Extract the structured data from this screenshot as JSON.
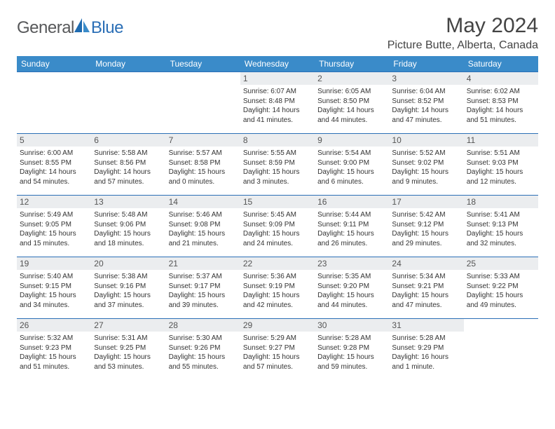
{
  "brand": {
    "general": "General",
    "blue": "Blue"
  },
  "title": "May 2024",
  "location": "Picture Butte, Alberta, Canada",
  "colors": {
    "header_bg": "#3a8bc9",
    "border": "#2b6fb6",
    "daynum_bg": "#ebedef",
    "text": "#333333",
    "logo_gray": "#57585a",
    "logo_blue": "#2b6fb6"
  },
  "weekdays": [
    "Sunday",
    "Monday",
    "Tuesday",
    "Wednesday",
    "Thursday",
    "Friday",
    "Saturday"
  ],
  "weeks": [
    [
      {
        "blank": true
      },
      {
        "blank": true
      },
      {
        "blank": true
      },
      {
        "day": "1",
        "sunrise": "Sunrise: 6:07 AM",
        "sunset": "Sunset: 8:48 PM",
        "daylight": "Daylight: 14 hours and 41 minutes."
      },
      {
        "day": "2",
        "sunrise": "Sunrise: 6:05 AM",
        "sunset": "Sunset: 8:50 PM",
        "daylight": "Daylight: 14 hours and 44 minutes."
      },
      {
        "day": "3",
        "sunrise": "Sunrise: 6:04 AM",
        "sunset": "Sunset: 8:52 PM",
        "daylight": "Daylight: 14 hours and 47 minutes."
      },
      {
        "day": "4",
        "sunrise": "Sunrise: 6:02 AM",
        "sunset": "Sunset: 8:53 PM",
        "daylight": "Daylight: 14 hours and 51 minutes."
      }
    ],
    [
      {
        "day": "5",
        "sunrise": "Sunrise: 6:00 AM",
        "sunset": "Sunset: 8:55 PM",
        "daylight": "Daylight: 14 hours and 54 minutes."
      },
      {
        "day": "6",
        "sunrise": "Sunrise: 5:58 AM",
        "sunset": "Sunset: 8:56 PM",
        "daylight": "Daylight: 14 hours and 57 minutes."
      },
      {
        "day": "7",
        "sunrise": "Sunrise: 5:57 AM",
        "sunset": "Sunset: 8:58 PM",
        "daylight": "Daylight: 15 hours and 0 minutes."
      },
      {
        "day": "8",
        "sunrise": "Sunrise: 5:55 AM",
        "sunset": "Sunset: 8:59 PM",
        "daylight": "Daylight: 15 hours and 3 minutes."
      },
      {
        "day": "9",
        "sunrise": "Sunrise: 5:54 AM",
        "sunset": "Sunset: 9:00 PM",
        "daylight": "Daylight: 15 hours and 6 minutes."
      },
      {
        "day": "10",
        "sunrise": "Sunrise: 5:52 AM",
        "sunset": "Sunset: 9:02 PM",
        "daylight": "Daylight: 15 hours and 9 minutes."
      },
      {
        "day": "11",
        "sunrise": "Sunrise: 5:51 AM",
        "sunset": "Sunset: 9:03 PM",
        "daylight": "Daylight: 15 hours and 12 minutes."
      }
    ],
    [
      {
        "day": "12",
        "sunrise": "Sunrise: 5:49 AM",
        "sunset": "Sunset: 9:05 PM",
        "daylight": "Daylight: 15 hours and 15 minutes."
      },
      {
        "day": "13",
        "sunrise": "Sunrise: 5:48 AM",
        "sunset": "Sunset: 9:06 PM",
        "daylight": "Daylight: 15 hours and 18 minutes."
      },
      {
        "day": "14",
        "sunrise": "Sunrise: 5:46 AM",
        "sunset": "Sunset: 9:08 PM",
        "daylight": "Daylight: 15 hours and 21 minutes."
      },
      {
        "day": "15",
        "sunrise": "Sunrise: 5:45 AM",
        "sunset": "Sunset: 9:09 PM",
        "daylight": "Daylight: 15 hours and 24 minutes."
      },
      {
        "day": "16",
        "sunrise": "Sunrise: 5:44 AM",
        "sunset": "Sunset: 9:11 PM",
        "daylight": "Daylight: 15 hours and 26 minutes."
      },
      {
        "day": "17",
        "sunrise": "Sunrise: 5:42 AM",
        "sunset": "Sunset: 9:12 PM",
        "daylight": "Daylight: 15 hours and 29 minutes."
      },
      {
        "day": "18",
        "sunrise": "Sunrise: 5:41 AM",
        "sunset": "Sunset: 9:13 PM",
        "daylight": "Daylight: 15 hours and 32 minutes."
      }
    ],
    [
      {
        "day": "19",
        "sunrise": "Sunrise: 5:40 AM",
        "sunset": "Sunset: 9:15 PM",
        "daylight": "Daylight: 15 hours and 34 minutes."
      },
      {
        "day": "20",
        "sunrise": "Sunrise: 5:38 AM",
        "sunset": "Sunset: 9:16 PM",
        "daylight": "Daylight: 15 hours and 37 minutes."
      },
      {
        "day": "21",
        "sunrise": "Sunrise: 5:37 AM",
        "sunset": "Sunset: 9:17 PM",
        "daylight": "Daylight: 15 hours and 39 minutes."
      },
      {
        "day": "22",
        "sunrise": "Sunrise: 5:36 AM",
        "sunset": "Sunset: 9:19 PM",
        "daylight": "Daylight: 15 hours and 42 minutes."
      },
      {
        "day": "23",
        "sunrise": "Sunrise: 5:35 AM",
        "sunset": "Sunset: 9:20 PM",
        "daylight": "Daylight: 15 hours and 44 minutes."
      },
      {
        "day": "24",
        "sunrise": "Sunrise: 5:34 AM",
        "sunset": "Sunset: 9:21 PM",
        "daylight": "Daylight: 15 hours and 47 minutes."
      },
      {
        "day": "25",
        "sunrise": "Sunrise: 5:33 AM",
        "sunset": "Sunset: 9:22 PM",
        "daylight": "Daylight: 15 hours and 49 minutes."
      }
    ],
    [
      {
        "day": "26",
        "sunrise": "Sunrise: 5:32 AM",
        "sunset": "Sunset: 9:23 PM",
        "daylight": "Daylight: 15 hours and 51 minutes."
      },
      {
        "day": "27",
        "sunrise": "Sunrise: 5:31 AM",
        "sunset": "Sunset: 9:25 PM",
        "daylight": "Daylight: 15 hours and 53 minutes."
      },
      {
        "day": "28",
        "sunrise": "Sunrise: 5:30 AM",
        "sunset": "Sunset: 9:26 PM",
        "daylight": "Daylight: 15 hours and 55 minutes."
      },
      {
        "day": "29",
        "sunrise": "Sunrise: 5:29 AM",
        "sunset": "Sunset: 9:27 PM",
        "daylight": "Daylight: 15 hours and 57 minutes."
      },
      {
        "day": "30",
        "sunrise": "Sunrise: 5:28 AM",
        "sunset": "Sunset: 9:28 PM",
        "daylight": "Daylight: 15 hours and 59 minutes."
      },
      {
        "day": "31",
        "sunrise": "Sunrise: 5:28 AM",
        "sunset": "Sunset: 9:29 PM",
        "daylight": "Daylight: 16 hours and 1 minute."
      },
      {
        "blank": true
      }
    ]
  ]
}
